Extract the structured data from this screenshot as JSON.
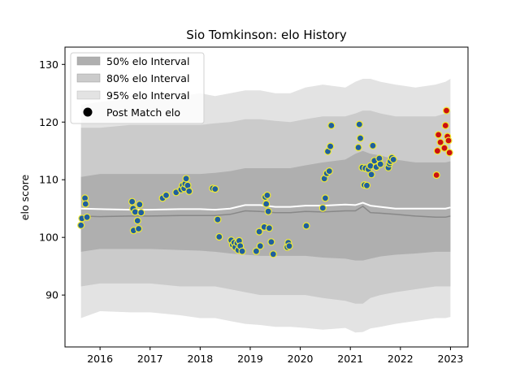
{
  "chart_data": {
    "type": "scatter",
    "title": "Sio Tomkinson: elo History",
    "xlabel": "",
    "ylabel": "elo score",
    "xlim": [
      2015.3,
      2023.35
    ],
    "ylim": [
      81,
      133
    ],
    "x_ticks": [
      2016,
      2017,
      2018,
      2019,
      2020,
      2021,
      2022,
      2023
    ],
    "x_tick_labels": [
      "2016",
      "2017",
      "2018",
      "2019",
      "2020",
      "2021",
      "2022",
      "2023"
    ],
    "y_ticks": [
      90,
      100,
      110,
      120,
      130
    ],
    "y_tick_labels": [
      "90",
      "100",
      "110",
      "120",
      "130"
    ],
    "grid": false,
    "legend_position": "top-left",
    "legend": [
      "50% elo Interval",
      "80% elo Interval",
      "95% elo Interval",
      "Post Match elo"
    ],
    "colors": {
      "band95": "#e3e3e3",
      "band80": "#cbcbcb",
      "band50": "#afafaf",
      "mean_line": "#ffffff",
      "median_line": "#888888",
      "point_fill": "#1f5f9e",
      "point_edge": "#f0ea35",
      "point_fill_recent": "#cc1010",
      "point_edge_recent": "#f0ea35"
    },
    "series": [
      {
        "name": "Post Match elo",
        "points": [
          {
            "x": 2015.62,
            "y": 102.1
          },
          {
            "x": 2015.64,
            "y": 103.3
          },
          {
            "x": 2015.7,
            "y": 106.8
          },
          {
            "x": 2015.71,
            "y": 105.8
          },
          {
            "x": 2015.74,
            "y": 103.5
          },
          {
            "x": 2016.64,
            "y": 106.2
          },
          {
            "x": 2016.66,
            "y": 105.0
          },
          {
            "x": 2016.67,
            "y": 101.2
          },
          {
            "x": 2016.7,
            "y": 104.4
          },
          {
            "x": 2016.75,
            "y": 102.9
          },
          {
            "x": 2016.77,
            "y": 101.5
          },
          {
            "x": 2016.79,
            "y": 105.7
          },
          {
            "x": 2016.82,
            "y": 104.3
          },
          {
            "x": 2017.25,
            "y": 106.8
          },
          {
            "x": 2017.32,
            "y": 107.3
          },
          {
            "x": 2017.52,
            "y": 107.8
          },
          {
            "x": 2017.62,
            "y": 108.3
          },
          {
            "x": 2017.65,
            "y": 109.0
          },
          {
            "x": 2017.68,
            "y": 108.5
          },
          {
            "x": 2017.7,
            "y": 109.3
          },
          {
            "x": 2017.72,
            "y": 110.2
          },
          {
            "x": 2017.75,
            "y": 109.0
          },
          {
            "x": 2017.78,
            "y": 108.0
          },
          {
            "x": 2018.25,
            "y": 108.5
          },
          {
            "x": 2018.3,
            "y": 108.4
          },
          {
            "x": 2018.35,
            "y": 103.1
          },
          {
            "x": 2018.38,
            "y": 100.1
          },
          {
            "x": 2018.62,
            "y": 99.5
          },
          {
            "x": 2018.65,
            "y": 98.7
          },
          {
            "x": 2018.68,
            "y": 99.1
          },
          {
            "x": 2018.7,
            "y": 98.3
          },
          {
            "x": 2018.74,
            "y": 99.0
          },
          {
            "x": 2018.76,
            "y": 97.8
          },
          {
            "x": 2018.78,
            "y": 99.4
          },
          {
            "x": 2018.8,
            "y": 98.5
          },
          {
            "x": 2018.84,
            "y": 97.6
          },
          {
            "x": 2019.12,
            "y": 97.6
          },
          {
            "x": 2019.18,
            "y": 101.0
          },
          {
            "x": 2019.2,
            "y": 98.5
          },
          {
            "x": 2019.28,
            "y": 101.8
          },
          {
            "x": 2019.3,
            "y": 107.0
          },
          {
            "x": 2019.32,
            "y": 105.8
          },
          {
            "x": 2019.34,
            "y": 107.3
          },
          {
            "x": 2019.36,
            "y": 104.5
          },
          {
            "x": 2019.38,
            "y": 101.6
          },
          {
            "x": 2019.42,
            "y": 99.2
          },
          {
            "x": 2019.46,
            "y": 97.1
          },
          {
            "x": 2019.74,
            "y": 98.3
          },
          {
            "x": 2019.76,
            "y": 99.1
          },
          {
            "x": 2019.78,
            "y": 98.5
          },
          {
            "x": 2020.12,
            "y": 102.0
          },
          {
            "x": 2020.45,
            "y": 105.1
          },
          {
            "x": 2020.48,
            "y": 110.2
          },
          {
            "x": 2020.5,
            "y": 106.8
          },
          {
            "x": 2020.53,
            "y": 111.1
          },
          {
            "x": 2020.55,
            "y": 114.9
          },
          {
            "x": 2020.58,
            "y": 111.5
          },
          {
            "x": 2020.6,
            "y": 115.8
          },
          {
            "x": 2020.62,
            "y": 119.4
          },
          {
            "x": 2021.16,
            "y": 115.6
          },
          {
            "x": 2021.18,
            "y": 119.6
          },
          {
            "x": 2021.2,
            "y": 117.2
          },
          {
            "x": 2021.24,
            "y": 112.1
          },
          {
            "x": 2021.28,
            "y": 109.1
          },
          {
            "x": 2021.3,
            "y": 112.0
          },
          {
            "x": 2021.33,
            "y": 109.0
          },
          {
            "x": 2021.36,
            "y": 111.8
          },
          {
            "x": 2021.4,
            "y": 112.4
          },
          {
            "x": 2021.42,
            "y": 110.9
          },
          {
            "x": 2021.45,
            "y": 115.9
          },
          {
            "x": 2021.48,
            "y": 113.3
          },
          {
            "x": 2021.52,
            "y": 112.2
          },
          {
            "x": 2021.58,
            "y": 113.7
          },
          {
            "x": 2021.6,
            "y": 112.7
          },
          {
            "x": 2021.76,
            "y": 112.1
          },
          {
            "x": 2021.78,
            "y": 112.8
          },
          {
            "x": 2021.8,
            "y": 113.2
          },
          {
            "x": 2021.83,
            "y": 113.8
          },
          {
            "x": 2021.86,
            "y": 113.5
          }
        ]
      },
      {
        "name": "Post Match elo",
        "recent": true,
        "points": [
          {
            "x": 2022.72,
            "y": 110.8
          },
          {
            "x": 2022.74,
            "y": 115.0
          },
          {
            "x": 2022.76,
            "y": 117.8
          },
          {
            "x": 2022.8,
            "y": 116.5
          },
          {
            "x": 2022.88,
            "y": 115.5
          },
          {
            "x": 2022.9,
            "y": 119.4
          },
          {
            "x": 2022.92,
            "y": 122.0
          },
          {
            "x": 2022.94,
            "y": 117.5
          },
          {
            "x": 2022.96,
            "y": 116.8
          },
          {
            "x": 2022.98,
            "y": 114.7
          }
        ]
      }
    ],
    "bands": {
      "x": [
        2015.62,
        2016.0,
        2016.6,
        2017.0,
        2017.6,
        2018.0,
        2018.3,
        2018.6,
        2018.9,
        2019.2,
        2019.5,
        2019.8,
        2020.1,
        2020.45,
        2020.9,
        2021.1,
        2021.25,
        2021.4,
        2021.6,
        2021.9,
        2022.3,
        2022.7,
        2022.9,
        2023.0
      ],
      "lo95": [
        86.0,
        87.2,
        87.0,
        87.0,
        86.5,
        86.0,
        86.0,
        85.5,
        85.0,
        84.8,
        84.5,
        84.5,
        84.3,
        84.0,
        84.3,
        83.5,
        83.6,
        84.2,
        84.5,
        85.0,
        85.5,
        86.0,
        86.0,
        86.2
      ],
      "hi95": [
        123.0,
        123.5,
        124.0,
        124.0,
        124.5,
        125.0,
        124.5,
        125.0,
        125.5,
        125.5,
        125.0,
        125.0,
        126.0,
        126.5,
        126.0,
        127.0,
        127.5,
        127.5,
        127.0,
        126.5,
        126.0,
        126.5,
        127.0,
        127.5
      ],
      "lo80": [
        91.5,
        92.0,
        92.0,
        92.0,
        91.5,
        91.5,
        91.5,
        91.0,
        90.5,
        90.0,
        90.0,
        90.0,
        90.0,
        89.5,
        89.0,
        88.5,
        88.5,
        89.5,
        90.0,
        90.5,
        91.0,
        91.5,
        91.5,
        91.5
      ],
      "hi80": [
        119.0,
        119.0,
        119.5,
        119.5,
        119.5,
        119.5,
        119.8,
        120.0,
        120.5,
        120.5,
        120.2,
        120.0,
        120.5,
        121.0,
        121.0,
        121.5,
        122.0,
        122.0,
        121.5,
        121.0,
        121.0,
        121.0,
        121.5,
        122.0
      ],
      "lo50": [
        97.5,
        98.0,
        98.0,
        98.0,
        97.8,
        97.7,
        97.5,
        97.2,
        97.0,
        96.8,
        96.8,
        96.8,
        96.8,
        96.5,
        96.3,
        96.0,
        96.0,
        96.3,
        96.7,
        97.0,
        97.2,
        97.5,
        97.5,
        97.5
      ],
      "hi50": [
        110.5,
        111.0,
        111.0,
        111.0,
        111.0,
        111.0,
        111.2,
        111.5,
        112.0,
        112.0,
        112.0,
        112.0,
        112.5,
        113.0,
        113.5,
        114.5,
        115.0,
        114.5,
        114.2,
        113.5,
        113.0,
        113.0,
        113.0,
        113.2
      ],
      "mean": [
        105.0,
        104.9,
        104.8,
        104.8,
        104.9,
        104.9,
        104.8,
        105.0,
        105.6,
        105.6,
        105.3,
        105.3,
        105.5,
        105.5,
        105.7,
        105.6,
        106.0,
        105.5,
        105.3,
        105.0,
        105.0,
        105.0,
        105.0,
        105.2
      ],
      "median": [
        103.7,
        103.6,
        103.7,
        103.7,
        103.8,
        103.8,
        103.8,
        104.0,
        104.6,
        104.5,
        104.3,
        104.3,
        104.5,
        104.4,
        104.6,
        104.6,
        105.4,
        104.3,
        104.2,
        104.0,
        103.7,
        103.5,
        103.5,
        103.7
      ]
    }
  }
}
